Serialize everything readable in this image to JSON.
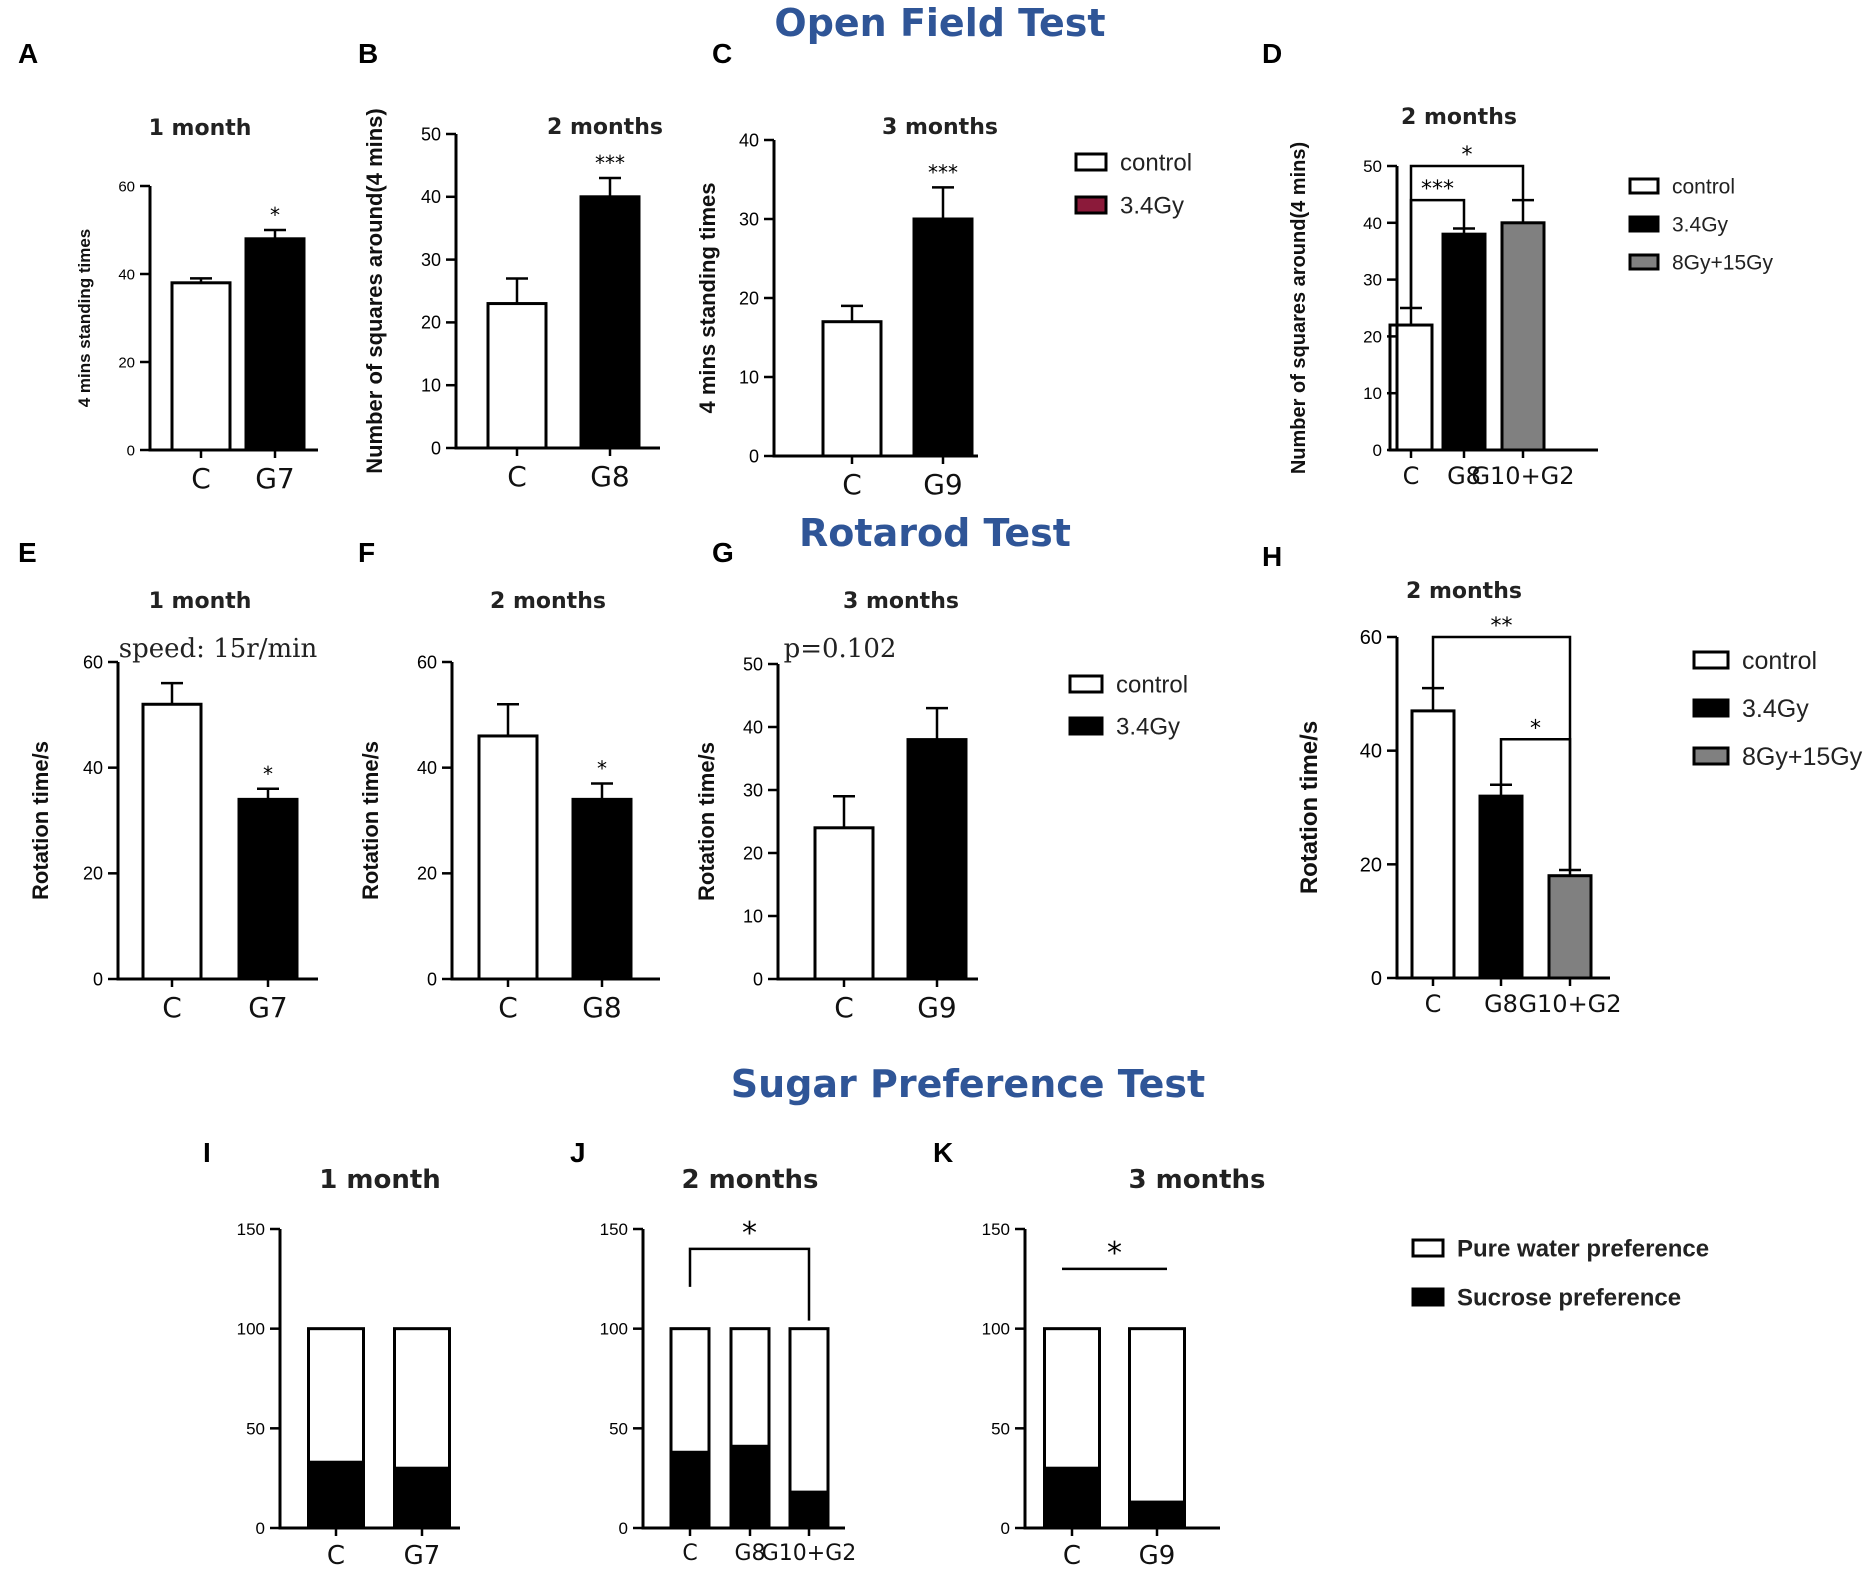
{
  "sections": [
    {
      "title": "Open Field Test"
    },
    {
      "title": "Rotarod Test"
    },
    {
      "title": "Sugar Preference Test"
    }
  ],
  "colors": {
    "section_title": "#2f5597",
    "control": "#ffffff",
    "g34": "#000000",
    "g34_legend_B": "#8b1a3a",
    "g_combo": "#808080",
    "pure_water": "#ffffff",
    "sucrose": "#000000"
  },
  "legends": [
    {
      "items": [
        {
          "label": "control",
          "color": "#ffffff"
        },
        {
          "label": "3.4Gy",
          "color": "#8b1a3a"
        }
      ]
    },
    {
      "items": [
        {
          "label": "control",
          "color": "#ffffff"
        },
        {
          "label": "3.4Gy",
          "color": "#000000"
        },
        {
          "label": "8Gy+15Gy",
          "color": "#808080"
        }
      ]
    },
    {
      "items": [
        {
          "label": "control",
          "color": "#ffffff"
        },
        {
          "label": "3.4Gy",
          "color": "#000000"
        }
      ]
    },
    {
      "items": [
        {
          "label": "control",
          "color": "#ffffff"
        },
        {
          "label": "3.4Gy",
          "color": "#000000"
        },
        {
          "label": "8Gy+15Gy",
          "color": "#808080"
        }
      ]
    },
    {
      "items": [
        {
          "label": "Pure water preference",
          "color": "#ffffff"
        },
        {
          "label": "Sucrose preference",
          "color": "#000000"
        }
      ]
    }
  ],
  "chart_data": [
    {
      "panel": "A",
      "type": "bar",
      "title": "1 month",
      "ylabel": "4 mins standing times",
      "ylim": [
        0,
        60
      ],
      "yticks": [
        0,
        20,
        40,
        60
      ],
      "categories": [
        "C",
        "G7"
      ],
      "values": [
        38,
        48
      ],
      "errors": [
        1,
        2
      ],
      "colors": [
        "#ffffff",
        "#000000"
      ],
      "annotations": [
        {
          "text": "*",
          "bar": 1
        }
      ]
    },
    {
      "panel": "B",
      "type": "bar",
      "title": "2 months",
      "ylabel": "Number of squares around(4 mins)",
      "ylim": [
        0,
        50
      ],
      "yticks": [
        0,
        10,
        20,
        30,
        40,
        50
      ],
      "categories": [
        "C",
        "G8"
      ],
      "values": [
        23,
        40
      ],
      "errors": [
        4,
        3
      ],
      "colors": [
        "#ffffff",
        "#000000"
      ],
      "annotations": [
        {
          "text": "***",
          "bar": 1
        }
      ]
    },
    {
      "panel": "C",
      "type": "bar",
      "title": "3 months",
      "ylabel": "4 mins standing times",
      "ylim": [
        0,
        40
      ],
      "yticks": [
        0,
        10,
        20,
        30,
        40
      ],
      "categories": [
        "C",
        "G9"
      ],
      "values": [
        17,
        30
      ],
      "errors": [
        2,
        4
      ],
      "colors": [
        "#ffffff",
        "#000000"
      ],
      "annotations": [
        {
          "text": "***",
          "bar": 1
        }
      ]
    },
    {
      "panel": "D",
      "type": "bar",
      "title": "2 months",
      "ylabel": "Number of squares around(4 mins)",
      "ylim": [
        0,
        50
      ],
      "yticks": [
        0,
        10,
        20,
        30,
        40,
        50
      ],
      "categories": [
        "C",
        "G8",
        "G10+G2"
      ],
      "values": [
        22,
        38,
        40
      ],
      "errors": [
        3,
        1,
        4
      ],
      "colors": [
        "#ffffff",
        "#000000",
        "#808080"
      ],
      "brackets": [
        {
          "from": 0,
          "to": 1,
          "level": 44,
          "text": "***"
        },
        {
          "from": 0,
          "to": 2,
          "level": 50,
          "text": "*"
        }
      ]
    },
    {
      "panel": "E",
      "type": "bar",
      "title": "1 month",
      "ylabel": "Rotation time/s",
      "ylim": [
        0,
        60
      ],
      "yticks": [
        0,
        20,
        40,
        60
      ],
      "categories": [
        "C",
        "G7"
      ],
      "values": [
        52,
        34
      ],
      "errors": [
        4,
        2
      ],
      "colors": [
        "#ffffff",
        "#000000"
      ],
      "annotations": [
        {
          "text": "*",
          "bar": 1
        }
      ],
      "note": "speed:   15r/min"
    },
    {
      "panel": "F",
      "type": "bar",
      "title": "2 months",
      "ylabel": "Rotation time/s",
      "ylim": [
        0,
        60
      ],
      "yticks": [
        0,
        20,
        40,
        60
      ],
      "categories": [
        "C",
        "G8"
      ],
      "values": [
        46,
        34
      ],
      "errors": [
        6,
        3
      ],
      "colors": [
        "#ffffff",
        "#000000"
      ],
      "annotations": [
        {
          "text": "*",
          "bar": 1
        }
      ]
    },
    {
      "panel": "G",
      "type": "bar",
      "title": "3 months",
      "ylabel": "Rotation time/s",
      "ylim": [
        0,
        50
      ],
      "yticks": [
        0,
        10,
        20,
        30,
        40,
        50
      ],
      "categories": [
        "C",
        "G9"
      ],
      "values": [
        24,
        38
      ],
      "errors": [
        5,
        5
      ],
      "colors": [
        "#ffffff",
        "#000000"
      ],
      "note": "p=0.102"
    },
    {
      "panel": "H",
      "type": "bar",
      "title": "2 months",
      "ylabel": "Rotation time/s",
      "ylim": [
        0,
        60
      ],
      "yticks": [
        0,
        20,
        40,
        60
      ],
      "categories": [
        "C",
        "G8",
        "G10+G2"
      ],
      "values": [
        47,
        32,
        18
      ],
      "errors": [
        4,
        2,
        1
      ],
      "colors": [
        "#ffffff",
        "#000000",
        "#808080"
      ],
      "brackets": [
        {
          "from": 0,
          "to": 2,
          "level": 60,
          "text": "**"
        },
        {
          "from": 1,
          "to": 2,
          "level": 42,
          "text": "*"
        }
      ]
    },
    {
      "panel": "I",
      "type": "bar",
      "stacked": true,
      "title": "1 month",
      "ylabel": "",
      "ylim": [
        0,
        150
      ],
      "yticks": [
        0,
        50,
        100,
        150
      ],
      "categories": [
        "C",
        "G7"
      ],
      "series": [
        {
          "name": "Sucrose preference",
          "values": [
            33,
            30
          ]
        },
        {
          "name": "Pure water preference",
          "values": [
            67,
            70
          ]
        }
      ]
    },
    {
      "panel": "J",
      "type": "bar",
      "stacked": true,
      "title": "2 months",
      "ylabel": "",
      "ylim": [
        0,
        150
      ],
      "yticks": [
        0,
        50,
        100,
        150
      ],
      "categories": [
        "C",
        "G8",
        "G10+G2"
      ],
      "series": [
        {
          "name": "Sucrose preference",
          "values": [
            38,
            41,
            18
          ]
        },
        {
          "name": "Pure water preference",
          "values": [
            62,
            59,
            82
          ]
        }
      ],
      "brackets": [
        {
          "from": 0,
          "to": 2,
          "level": 140,
          "text": "*",
          "drops": true
        }
      ]
    },
    {
      "panel": "K",
      "type": "bar",
      "stacked": true,
      "title": "3 months",
      "ylabel": "",
      "ylim": [
        0,
        150
      ],
      "yticks": [
        0,
        50,
        100,
        150
      ],
      "categories": [
        "C",
        "G9"
      ],
      "series": [
        {
          "name": "Sucrose preference",
          "values": [
            30,
            13
          ]
        },
        {
          "name": "Pure water preference",
          "values": [
            70,
            87
          ]
        }
      ],
      "brackets": [
        {
          "from": 0,
          "to": 1,
          "level": 130,
          "text": "*",
          "drops": false
        }
      ]
    }
  ]
}
